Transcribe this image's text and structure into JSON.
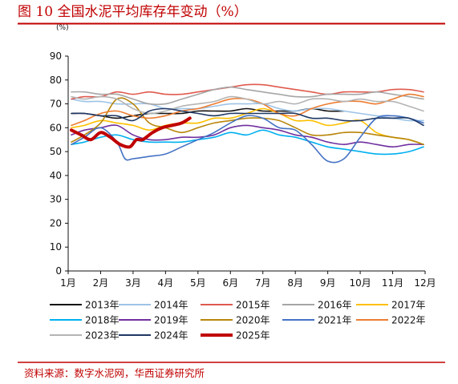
{
  "header": {
    "title": "图 10 全国水泥平均库存年变动（%）"
  },
  "footer": {
    "source": "资料来源：数字水泥网，华西证券研究所"
  },
  "chart_data": {
    "type": "line",
    "title": "图 10 全国水泥平均库存年变动（%）",
    "unit_label": "(%)",
    "xlabel": "",
    "ylabel": "",
    "x_ticks": [
      "1月",
      "2月",
      "3月",
      "4月",
      "5月",
      "6月",
      "7月",
      "8月",
      "9月",
      "10月",
      "11月",
      "12月"
    ],
    "x_range": [
      1,
      12
    ],
    "ylim": [
      0,
      90
    ],
    "y_ticks": [
      0,
      10,
      20,
      30,
      40,
      50,
      60,
      70,
      80,
      90
    ],
    "grid": false,
    "legend_position": "bottom",
    "series": [
      {
        "name": "2013年",
        "color": "#111111",
        "x": [
          1.1,
          1.5,
          2.0,
          2.5,
          3.0,
          3.5,
          4.0,
          4.5,
          5.0,
          5.5,
          6.0,
          6.5,
          7.0,
          7.5,
          8.0,
          8.5,
          9.0,
          9.5
        ],
        "y": [
          66,
          66,
          65,
          64,
          65,
          66,
          66,
          66,
          67,
          67,
          67,
          68,
          67,
          67,
          67,
          68,
          67,
          67
        ]
      },
      {
        "name": "2014年",
        "color": "#9dc3e6",
        "x": [
          1.1,
          1.5,
          2.0,
          2.5,
          3.0,
          3.5,
          4.0,
          4.5,
          5.0,
          5.5,
          6.0,
          6.5,
          7.0,
          7.5,
          8.0,
          8.5,
          9.0,
          9.5,
          10.0,
          10.5,
          11.0,
          11.5,
          11.95
        ],
        "y": [
          72,
          71,
          71,
          70,
          70,
          70,
          68,
          68,
          68,
          69,
          70,
          70,
          70,
          68,
          67,
          68,
          68,
          67,
          66,
          65,
          64,
          63,
          63
        ]
      },
      {
        "name": "2015年",
        "color": "#e05a4e",
        "x": [
          1.1,
          1.5,
          2.0,
          2.5,
          3.0,
          3.5,
          4.0,
          4.5,
          5.0,
          5.5,
          6.0,
          6.5,
          7.0,
          7.5,
          8.0,
          8.5,
          9.0,
          9.5,
          10.0,
          10.5,
          11.0,
          11.5,
          11.95
        ],
        "y": [
          72,
          73,
          73,
          75,
          74,
          75,
          74,
          74,
          75,
          76,
          77,
          78,
          78,
          77,
          76,
          75,
          74,
          75,
          75,
          75,
          76,
          76,
          75
        ]
      },
      {
        "name": "2016年",
        "color": "#a6a6a6",
        "x": [
          1.1,
          1.5,
          2.0,
          2.5,
          3.0,
          3.5,
          4.0,
          4.5,
          5.0,
          5.5,
          6.0,
          6.5,
          7.0,
          7.5,
          8.0,
          8.5,
          9.0,
          9.5,
          10.0,
          10.5,
          11.0,
          11.5,
          11.95
        ],
        "y": [
          75,
          75,
          74,
          74,
          72,
          70,
          70,
          72,
          74,
          76,
          77,
          76,
          75,
          74,
          73,
          73,
          74,
          74,
          74,
          75,
          74,
          73,
          72
        ]
      },
      {
        "name": "2017年",
        "color": "#ffc000",
        "x": [
          1.1,
          1.5,
          2.0,
          2.5,
          3.0,
          3.5,
          4.0,
          4.5,
          5.0,
          5.5,
          6.0,
          6.5,
          7.0,
          7.5,
          8.0,
          8.5,
          9.0,
          9.5,
          10.0,
          10.5,
          11.0,
          11.5,
          11.95
        ],
        "y": [
          60,
          61,
          63,
          62,
          61,
          59,
          61,
          62,
          62,
          64,
          64,
          66,
          68,
          66,
          63,
          63,
          61,
          62,
          63,
          58,
          56,
          55,
          53
        ]
      },
      {
        "name": "2018年",
        "color": "#00b0f0",
        "x": [
          1.1,
          1.5,
          2.0,
          2.5,
          3.0,
          3.5,
          4.0,
          4.5,
          5.0,
          5.5,
          6.0,
          6.5,
          7.0,
          7.5,
          8.0,
          8.5,
          9.0,
          9.5,
          10.0,
          10.5,
          11.0,
          11.5,
          11.95
        ],
        "y": [
          53,
          54,
          56,
          57,
          55,
          54,
          54,
          54,
          55,
          56,
          58,
          57,
          59,
          57,
          56,
          54,
          52,
          51,
          50,
          49,
          49,
          50,
          52
        ]
      },
      {
        "name": "2019年",
        "color": "#7030a0",
        "x": [
          1.1,
          1.5,
          2.0,
          2.5,
          3.0,
          3.5,
          4.0,
          4.5,
          5.0,
          5.5,
          6.0,
          6.5,
          7.0,
          7.5,
          8.0,
          8.5,
          9.0,
          9.5,
          10.0,
          10.5,
          11.0,
          11.5,
          11.95
        ],
        "y": [
          57,
          59,
          60,
          61,
          57,
          55,
          55,
          56,
          56,
          57,
          60,
          61,
          60,
          59,
          57,
          56,
          54,
          53,
          54,
          53,
          52,
          53,
          53
        ]
      },
      {
        "name": "2020年",
        "color": "#b8860b",
        "x": [
          1.1,
          1.5,
          2.0,
          2.5,
          3.0,
          3.5,
          4.0,
          4.5,
          5.0,
          5.5,
          6.0,
          6.5,
          7.0,
          7.5,
          8.0,
          8.5,
          9.0,
          9.5,
          10.0,
          10.5,
          11.0,
          11.5,
          11.95
        ],
        "y": [
          54,
          57,
          62,
          72,
          70,
          62,
          60,
          58,
          60,
          62,
          63,
          64,
          64,
          63,
          60,
          57,
          57,
          58,
          58,
          57,
          56,
          55,
          53
        ]
      },
      {
        "name": "2021年",
        "color": "#4472c4",
        "x": [
          1.1,
          1.5,
          2.0,
          2.5,
          2.75,
          3.0,
          3.5,
          4.0,
          4.5,
          5.0,
          5.5,
          6.0,
          6.5,
          7.0,
          7.5,
          8.0,
          8.5,
          9.0,
          9.5,
          10.0,
          10.5,
          11.0,
          11.5,
          11.95
        ],
        "y": [
          53,
          56,
          60,
          54,
          47,
          47,
          48,
          49,
          52,
          55,
          58,
          62,
          65,
          64,
          60,
          59,
          53,
          46,
          47,
          56,
          64,
          65,
          64,
          62
        ]
      },
      {
        "name": "2022年",
        "color": "#ed7d31",
        "x": [
          1.1,
          1.5,
          2.0,
          2.5,
          3.0,
          3.5,
          4.0,
          4.5,
          5.0,
          5.5,
          6.0,
          6.5,
          7.0,
          7.5,
          8.0,
          8.5,
          9.0,
          9.5,
          10.0,
          10.5,
          11.0,
          11.5,
          11.95
        ],
        "y": [
          61,
          63,
          66,
          67,
          65,
          64,
          65,
          67,
          68,
          70,
          72,
          72,
          70,
          66,
          65,
          68,
          70,
          71,
          71,
          70,
          72,
          74,
          73
        ]
      },
      {
        "name": "2023年",
        "color": "#b4b4b4",
        "x": [
          1.1,
          1.5,
          2.0,
          2.5,
          3.0,
          3.5,
          4.0,
          4.5,
          5.0,
          5.5,
          6.0,
          6.5,
          7.0,
          7.5,
          8.0,
          8.5,
          9.0,
          9.5,
          10.0,
          10.5,
          11.0,
          11.5,
          11.95
        ],
        "y": [
          73,
          72,
          73,
          72,
          68,
          66,
          67,
          69,
          70,
          71,
          73,
          72,
          70,
          71,
          70,
          72,
          72,
          71,
          72,
          71,
          71,
          69,
          67
        ]
      },
      {
        "name": "2024年",
        "color": "#1f3864",
        "x": [
          1.1,
          1.5,
          2.0,
          2.5,
          3.0,
          3.5,
          4.0,
          4.5,
          5.0,
          5.5,
          6.0,
          6.5,
          7.0,
          7.5,
          8.0,
          8.5,
          9.0,
          9.5,
          10.0,
          10.5,
          11.0,
          11.5,
          11.95
        ],
        "y": [
          66,
          66,
          65,
          65,
          63,
          67,
          68,
          67,
          66,
          65,
          66,
          66,
          66,
          66,
          66,
          64,
          64,
          63,
          63,
          64,
          64,
          64,
          61
        ]
      },
      {
        "name": "2025年",
        "color": "#c00000",
        "x": [
          1.1,
          1.4,
          1.7,
          2.0,
          2.3,
          2.6,
          2.9,
          3.1,
          3.3,
          3.6,
          3.9,
          4.2,
          4.5,
          4.75
        ],
        "y": [
          59,
          57,
          55,
          58,
          56,
          53,
          52,
          55,
          55,
          58,
          60,
          61,
          62,
          64
        ]
      }
    ]
  }
}
